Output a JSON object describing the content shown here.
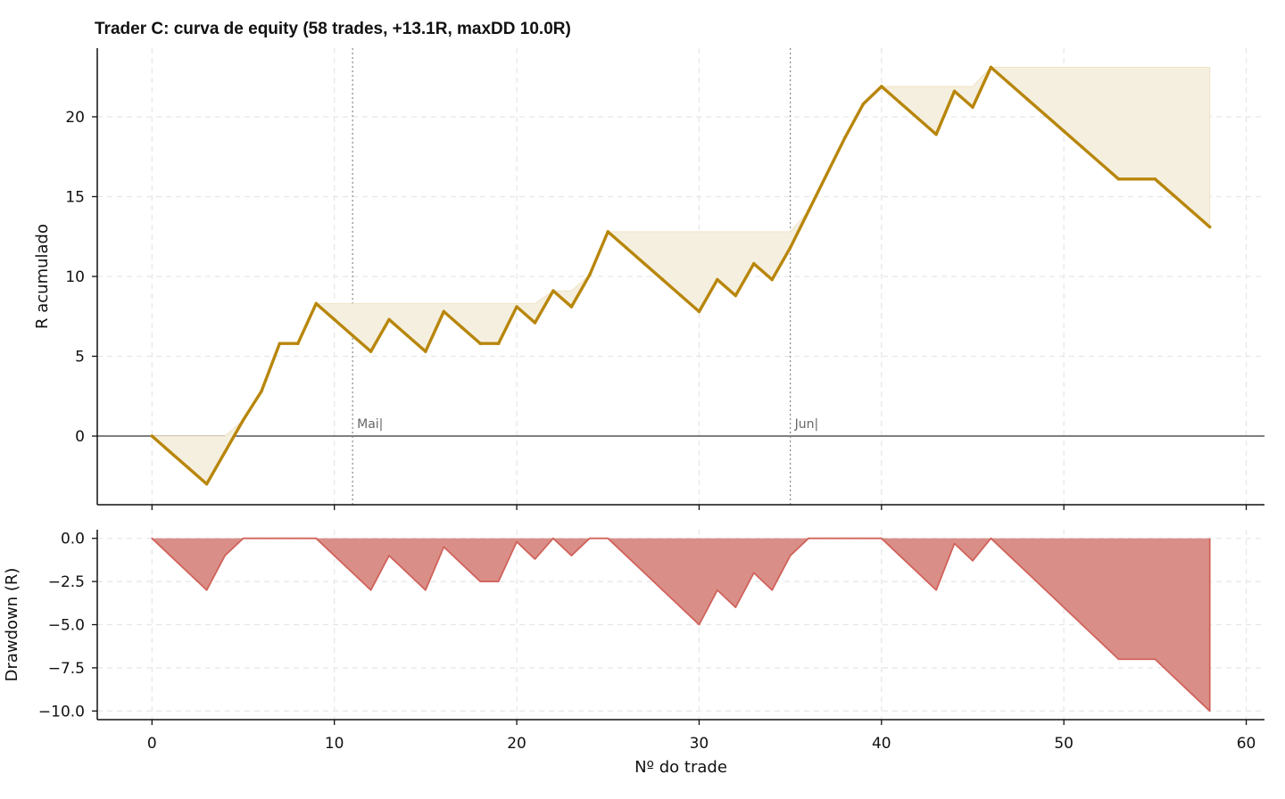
{
  "chart_data": [
    {
      "type": "line",
      "panel": "equity",
      "title": "Trader C: curva de equity (58 trades, +13.1R, maxDD 10.0R)",
      "ylabel": "R acumulado",
      "xlim": [
        -3,
        61
      ],
      "ylim": [
        -4.3,
        24.3
      ],
      "yticks": [
        0,
        5,
        10,
        15,
        20
      ],
      "grid": true,
      "colors": {
        "line": "#b8860b",
        "fill": "#f5efdf",
        "zero": "#555555"
      },
      "x": [
        0,
        1,
        2,
        3,
        4,
        5,
        6,
        7,
        8,
        9,
        10,
        11,
        12,
        13,
        14,
        15,
        16,
        17,
        18,
        19,
        20,
        21,
        22,
        23,
        24,
        25,
        26,
        27,
        28,
        29,
        30,
        31,
        32,
        33,
        34,
        35,
        36,
        37,
        38,
        39,
        40,
        41,
        42,
        43,
        44,
        45,
        46,
        47,
        48,
        49,
        50,
        51,
        52,
        53,
        54,
        55,
        56,
        57,
        58
      ],
      "equity": [
        0,
        -1,
        -2,
        -3,
        -1,
        1,
        2.8,
        5.8,
        5.8,
        8.3,
        7.3,
        6.3,
        5.3,
        7.3,
        6.3,
        5.3,
        7.8,
        6.8,
        5.8,
        5.8,
        8.1,
        7.1,
        9.1,
        8.1,
        10.1,
        12.8,
        11.8,
        10.8,
        9.8,
        8.8,
        7.8,
        9.8,
        8.8,
        10.8,
        9.8,
        11.8,
        14.1,
        16.4,
        18.7,
        20.8,
        21.9,
        20.9,
        19.9,
        18.9,
        21.6,
        20.6,
        23.1,
        22.1,
        21.1,
        20.1,
        19.1,
        18.1,
        17.1,
        16.1,
        16.1,
        16.1,
        15.1,
        14.1,
        13.1
      ],
      "running_peak": [
        0,
        0,
        0,
        0,
        0,
        1,
        2.8,
        5.8,
        5.8,
        8.3,
        8.3,
        8.3,
        8.3,
        8.3,
        8.3,
        8.3,
        8.3,
        8.3,
        8.3,
        8.3,
        8.3,
        8.3,
        9.1,
        9.1,
        10.1,
        12.8,
        12.8,
        12.8,
        12.8,
        12.8,
        12.8,
        12.8,
        12.8,
        12.8,
        12.8,
        12.8,
        14.1,
        16.4,
        18.7,
        20.8,
        21.9,
        21.9,
        21.9,
        21.9,
        21.9,
        21.9,
        23.1,
        23.1,
        23.1,
        23.1,
        23.1,
        23.1,
        23.1,
        23.1,
        23.1,
        23.1,
        23.1,
        23.1,
        23.1
      ],
      "month_markers": [
        {
          "x": 11,
          "label": "Mai|"
        },
        {
          "x": 35,
          "label": "Jun|"
        }
      ]
    },
    {
      "type": "area",
      "panel": "drawdown",
      "ylabel": "Drawdown (R)",
      "xlabel": "Nº do trade",
      "xlim": [
        -3,
        61
      ],
      "ylim": [
        -10.5,
        0.5
      ],
      "xticks": [
        0,
        10,
        20,
        30,
        40,
        50,
        60
      ],
      "yticks": [
        0,
        -2.5,
        -5,
        -7.5,
        -10
      ],
      "ytick_labels": [
        "0.0",
        "−2.5",
        "−5.0",
        "−7.5",
        "−10.0"
      ],
      "grid": true,
      "colors": {
        "fill": "#d98f88",
        "line": "#d0625a"
      },
      "x": [
        0,
        1,
        2,
        3,
        4,
        5,
        6,
        7,
        8,
        9,
        10,
        11,
        12,
        13,
        14,
        15,
        16,
        17,
        18,
        19,
        20,
        21,
        22,
        23,
        24,
        25,
        26,
        27,
        28,
        29,
        30,
        31,
        32,
        33,
        34,
        35,
        36,
        37,
        38,
        39,
        40,
        41,
        42,
        43,
        44,
        45,
        46,
        47,
        48,
        49,
        50,
        51,
        52,
        53,
        54,
        55,
        56,
        57,
        58
      ],
      "drawdown": [
        0,
        -1,
        -2,
        -3,
        -1,
        0,
        0,
        0,
        0,
        0,
        -1,
        -2,
        -3,
        -1,
        -2,
        -3,
        -0.5,
        -1.5,
        -2.5,
        -2.5,
        -0.2,
        -1.2,
        0,
        -1,
        0,
        0,
        -1,
        -2,
        -3,
        -4,
        -5,
        -3,
        -4,
        -2,
        -3,
        -1,
        0,
        0,
        0,
        0,
        0,
        -1,
        -2,
        -3,
        -0.3,
        -1.3,
        0,
        -1,
        -2,
        -3,
        -4,
        -5,
        -6,
        -7,
        -7,
        -7,
        -8,
        -9,
        -10
      ]
    }
  ]
}
